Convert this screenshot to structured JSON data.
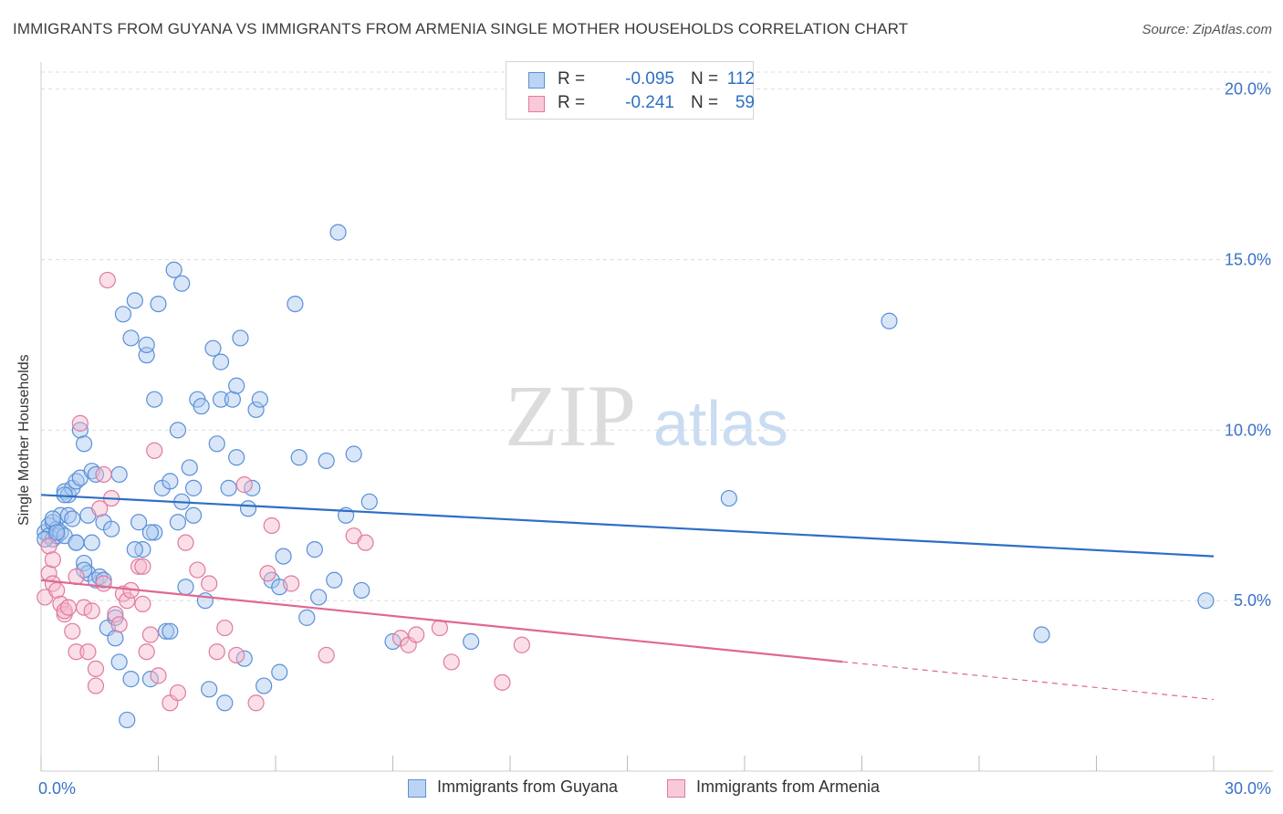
{
  "title": "IMMIGRANTS FROM GUYANA VS IMMIGRANTS FROM ARMENIA SINGLE MOTHER HOUSEHOLDS CORRELATION CHART",
  "source": "Source: ZipAtlas.com",
  "watermark": {
    "zip": "ZIP",
    "atlas": "atlas"
  },
  "colors": {
    "blue": "#5b8fd6",
    "blue_fill": "#a9c8f0",
    "blue_line": "#2d6fc5",
    "pink": "#e07aa0",
    "pink_fill": "#f5b8cc",
    "pink_line": "#e0688f",
    "tick_text": "#3a72c6",
    "grid": "#dddddd"
  },
  "legend": {
    "rows": [
      {
        "r_label": "R =",
        "r_value": "-0.095",
        "n_label": "N =",
        "n_value": "112"
      },
      {
        "r_label": "R =",
        "r_value": "-0.241",
        "n_label": "N =",
        "n_value": "59"
      }
    ]
  },
  "chart_data": {
    "type": "scatter",
    "title": "IMMIGRANTS FROM GUYANA VS IMMIGRANTS FROM ARMENIA SINGLE MOTHER HOUSEHOLDS CORRELATION CHART",
    "xlabel": "",
    "ylabel": "Single Mother Households",
    "xlim": [
      0,
      30
    ],
    "ylim": [
      0,
      20.5
    ],
    "x_tick_labels": [
      {
        "value": 0,
        "label": "0.0%"
      },
      {
        "value": 30,
        "label": "30.0%"
      }
    ],
    "y_tick_labels": [
      {
        "value": 5,
        "label": "5.0%"
      },
      {
        "value": 10,
        "label": "10.0%"
      },
      {
        "value": 15,
        "label": "15.0%"
      },
      {
        "value": 20,
        "label": "20.0%"
      }
    ],
    "x_minor_ticks": [
      0,
      3,
      6,
      9,
      12,
      15,
      18,
      21,
      24,
      27,
      30
    ],
    "grid": true,
    "series": [
      {
        "name": "Immigrants from Guyana",
        "color": "blue",
        "r": -0.095,
        "n": 112,
        "trend": {
          "x0": 0,
          "y0": 8.1,
          "x1": 30,
          "y1": 6.3,
          "dashed_from": null
        },
        "points": [
          [
            0.1,
            7.0
          ],
          [
            0.2,
            7.2
          ],
          [
            0.2,
            6.9
          ],
          [
            0.3,
            7.3
          ],
          [
            0.3,
            6.8
          ],
          [
            0.4,
            7.1
          ],
          [
            0.4,
            6.9
          ],
          [
            0.5,
            7.5
          ],
          [
            0.5,
            7.0
          ],
          [
            0.6,
            6.9
          ],
          [
            0.6,
            8.2
          ],
          [
            0.7,
            8.1
          ],
          [
            0.7,
            7.5
          ],
          [
            0.8,
            8.3
          ],
          [
            0.9,
            8.5
          ],
          [
            0.9,
            6.7
          ],
          [
            1.0,
            8.6
          ],
          [
            1.0,
            10.0
          ],
          [
            1.1,
            9.6
          ],
          [
            1.1,
            6.1
          ],
          [
            1.2,
            5.8
          ],
          [
            1.2,
            7.5
          ],
          [
            1.3,
            8.8
          ],
          [
            1.3,
            6.7
          ],
          [
            1.4,
            5.6
          ],
          [
            1.5,
            5.7
          ],
          [
            1.6,
            7.3
          ],
          [
            1.7,
            4.2
          ],
          [
            1.8,
            7.1
          ],
          [
            1.9,
            4.5
          ],
          [
            1.9,
            3.9
          ],
          [
            2.0,
            3.2
          ],
          [
            2.0,
            8.7
          ],
          [
            2.1,
            13.4
          ],
          [
            2.2,
            1.5
          ],
          [
            2.3,
            12.7
          ],
          [
            2.4,
            13.8
          ],
          [
            2.5,
            7.3
          ],
          [
            2.6,
            6.5
          ],
          [
            2.7,
            12.2
          ],
          [
            2.7,
            12.5
          ],
          [
            2.8,
            2.7
          ],
          [
            2.9,
            10.9
          ],
          [
            2.9,
            7.0
          ],
          [
            3.0,
            13.7
          ],
          [
            3.1,
            8.3
          ],
          [
            3.2,
            4.1
          ],
          [
            3.3,
            8.5
          ],
          [
            3.4,
            14.7
          ],
          [
            3.5,
            7.3
          ],
          [
            3.5,
            10.0
          ],
          [
            3.6,
            14.3
          ],
          [
            3.6,
            7.9
          ],
          [
            3.7,
            5.4
          ],
          [
            3.8,
            8.9
          ],
          [
            3.9,
            8.3
          ],
          [
            3.9,
            7.5
          ],
          [
            4.0,
            10.9
          ],
          [
            4.1,
            10.7
          ],
          [
            4.2,
            5.0
          ],
          [
            4.3,
            2.4
          ],
          [
            4.4,
            12.4
          ],
          [
            4.5,
            9.6
          ],
          [
            4.6,
            10.9
          ],
          [
            4.6,
            12.0
          ],
          [
            4.8,
            8.3
          ],
          [
            4.9,
            10.9
          ],
          [
            5.0,
            11.3
          ],
          [
            5.0,
            9.2
          ],
          [
            5.1,
            12.7
          ],
          [
            5.2,
            3.3
          ],
          [
            5.3,
            7.7
          ],
          [
            5.4,
            8.3
          ],
          [
            5.5,
            10.6
          ],
          [
            5.6,
            10.9
          ],
          [
            5.7,
            2.5
          ],
          [
            5.9,
            5.6
          ],
          [
            6.1,
            2.9
          ],
          [
            6.1,
            5.4
          ],
          [
            6.2,
            6.3
          ],
          [
            6.5,
            13.7
          ],
          [
            6.6,
            9.2
          ],
          [
            6.8,
            4.5
          ],
          [
            7.0,
            6.5
          ],
          [
            7.1,
            5.1
          ],
          [
            7.3,
            9.1
          ],
          [
            7.5,
            5.6
          ],
          [
            7.6,
            15.8
          ],
          [
            7.8,
            7.5
          ],
          [
            8.0,
            9.3
          ],
          [
            8.2,
            5.3
          ],
          [
            8.4,
            7.9
          ],
          [
            9.0,
            3.8
          ],
          [
            11.0,
            3.8
          ],
          [
            17.6,
            8.0
          ],
          [
            21.7,
            13.2
          ],
          [
            25.6,
            4.0
          ],
          [
            29.8,
            5.0
          ],
          [
            0.1,
            6.8
          ],
          [
            0.3,
            7.4
          ],
          [
            0.6,
            8.1
          ],
          [
            1.6,
            5.6
          ],
          [
            2.4,
            6.5
          ],
          [
            3.3,
            4.1
          ],
          [
            4.7,
            2.0
          ],
          [
            0.8,
            7.4
          ],
          [
            1.4,
            8.7
          ],
          [
            2.3,
            2.7
          ],
          [
            0.4,
            7.0
          ],
          [
            0.9,
            6.7
          ],
          [
            1.1,
            5.9
          ],
          [
            2.8,
            7.0
          ]
        ]
      },
      {
        "name": "Immigrants from Armenia",
        "color": "pink",
        "r": -0.241,
        "n": 59,
        "trend": {
          "x0": 0,
          "y0": 5.6,
          "x1": 30,
          "y1": 2.1,
          "dashed_from": 20.5
        },
        "points": [
          [
            0.1,
            5.1
          ],
          [
            0.2,
            5.8
          ],
          [
            0.2,
            6.6
          ],
          [
            0.3,
            5.5
          ],
          [
            0.3,
            6.2
          ],
          [
            0.4,
            5.3
          ],
          [
            0.5,
            4.9
          ],
          [
            0.6,
            4.6
          ],
          [
            0.6,
            4.7
          ],
          [
            0.7,
            4.8
          ],
          [
            0.8,
            4.1
          ],
          [
            0.9,
            5.7
          ],
          [
            0.9,
            3.5
          ],
          [
            1.0,
            10.2
          ],
          [
            1.1,
            4.8
          ],
          [
            1.2,
            3.5
          ],
          [
            1.3,
            4.7
          ],
          [
            1.4,
            3.0
          ],
          [
            1.4,
            2.5
          ],
          [
            1.5,
            7.7
          ],
          [
            1.6,
            8.7
          ],
          [
            1.6,
            5.5
          ],
          [
            1.7,
            14.4
          ],
          [
            1.8,
            8.0
          ],
          [
            1.9,
            4.6
          ],
          [
            2.0,
            4.3
          ],
          [
            2.1,
            5.2
          ],
          [
            2.2,
            5.0
          ],
          [
            2.3,
            5.3
          ],
          [
            2.5,
            6.0
          ],
          [
            2.6,
            6.0
          ],
          [
            2.6,
            4.9
          ],
          [
            2.7,
            3.5
          ],
          [
            2.8,
            4.0
          ],
          [
            2.9,
            9.4
          ],
          [
            3.0,
            2.8
          ],
          [
            3.3,
            2.0
          ],
          [
            3.5,
            2.3
          ],
          [
            3.7,
            6.7
          ],
          [
            4.0,
            5.9
          ],
          [
            4.3,
            5.5
          ],
          [
            4.5,
            3.5
          ],
          [
            4.7,
            4.2
          ],
          [
            5.0,
            3.4
          ],
          [
            5.2,
            8.4
          ],
          [
            5.5,
            2.0
          ],
          [
            5.8,
            5.8
          ],
          [
            5.9,
            7.2
          ],
          [
            6.4,
            5.5
          ],
          [
            7.3,
            3.4
          ],
          [
            8.0,
            6.9
          ],
          [
            8.3,
            6.7
          ],
          [
            9.2,
            3.9
          ],
          [
            9.4,
            3.7
          ],
          [
            9.6,
            4.0
          ],
          [
            10.2,
            4.2
          ],
          [
            10.5,
            3.2
          ],
          [
            11.8,
            2.6
          ],
          [
            12.3,
            3.7
          ]
        ]
      }
    ]
  },
  "bottom_legend": [
    {
      "label": "Immigrants from Guyana"
    },
    {
      "label": "Immigrants from Armenia"
    }
  ]
}
